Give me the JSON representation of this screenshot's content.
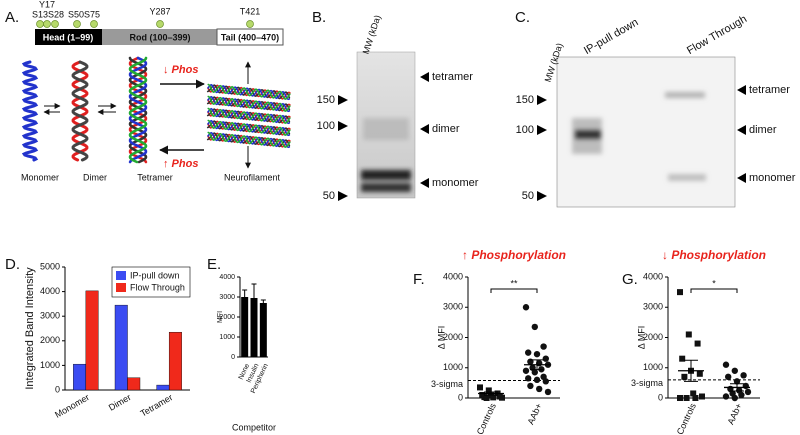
{
  "panel_a": {
    "label": "A.",
    "sites": [
      "Y17",
      "S13",
      "S28",
      "S50",
      "S75",
      "Y287",
      "T421"
    ],
    "domains": [
      "Head (1–99)",
      "Rod (100–399)",
      "Tail (400–470)"
    ],
    "phos_down": "↓ Phos",
    "phos_up": "↑ Phos",
    "states": [
      "Monomer",
      "Dimer",
      "Tetramer",
      "Neurofilament"
    ]
  },
  "panel_b": {
    "label": "B.",
    "axis_label": "MW (kDa)",
    "markers": [
      "150",
      "100",
      "50"
    ],
    "bands": [
      "tetramer",
      "dimer",
      "monomer"
    ]
  },
  "panel_c": {
    "label": "C.",
    "axis_label": "MW (kDa)",
    "lanes": [
      "IP-pull down",
      "Flow Through"
    ],
    "markers": [
      "150",
      "100",
      "50"
    ],
    "bands": [
      "tetramer",
      "dimer",
      "monomer"
    ]
  },
  "chart_data": [
    {
      "type": "bar",
      "panel_label": "D.",
      "y_label": "Integrated Band Intensity",
      "categories": [
        "Monomer",
        "Dimer",
        "Tetramer"
      ],
      "series": [
        {
          "name": "IP-pull down",
          "color": "#3b4cf2",
          "values": [
            1050,
            3450,
            200
          ]
        },
        {
          "name": "Flow Through",
          "color": "#f0291b",
          "values": [
            4030,
            500,
            2350
          ]
        }
      ],
      "ylim": [
        0,
        5000
      ],
      "yticks": [
        0,
        1000,
        2000,
        3000,
        4000,
        5000
      ],
      "legend": "top-right"
    },
    {
      "type": "bar",
      "panel_label": "E.",
      "y_label": "MFI",
      "x_label": "Competitor",
      "categories": [
        "None",
        "Insulin",
        "Peripherin"
      ],
      "values": [
        3000,
        2950,
        2700
      ],
      "errors": [
        350,
        700,
        150
      ],
      "color": "#000000",
      "ylim": [
        0,
        4000
      ],
      "yticks": [
        0,
        1000,
        2000,
        3000,
        4000
      ]
    },
    {
      "type": "dot",
      "panel_label": "F.",
      "title": "↑ Phosphorylation",
      "y_label": "Δ MFI",
      "categories": [
        "Controls",
        "AAb+"
      ],
      "markers": [
        "square",
        "circle"
      ],
      "points": [
        [
          350,
          250,
          150,
          100,
          80,
          50,
          30,
          20,
          10,
          0
        ],
        [
          3000,
          2350,
          1700,
          1500,
          1450,
          1300,
          1200,
          1150,
          1100,
          1000,
          950,
          900,
          850,
          700,
          650,
          600,
          550,
          400,
          300,
          200
        ]
      ],
      "mean": [
        150,
        1100
      ],
      "sem": [
        50,
        160
      ],
      "threshold": {
        "value": 580,
        "label": "3-sigma"
      },
      "significance": "**",
      "ylim": [
        0,
        4000
      ],
      "yticks": [
        0,
        1000,
        2000,
        3000,
        4000
      ]
    },
    {
      "type": "dot",
      "panel_label": "G.",
      "title": "↓ Phosphorylation",
      "y_label": "Δ MFI",
      "categories": [
        "Controls",
        "AAb+"
      ],
      "markers": [
        "square",
        "circle"
      ],
      "points": [
        [
          3500,
          2100,
          1800,
          1300,
          900,
          800,
          700,
          150,
          50,
          0,
          0,
          0
        ],
        [
          1100,
          900,
          750,
          700,
          550,
          400,
          300,
          250,
          200,
          150,
          100,
          50,
          0
        ]
      ],
      "mean": [
        900,
        350
      ],
      "sem": [
        350,
        120
      ],
      "threshold": {
        "value": 600,
        "label": "3-sigma"
      },
      "significance": "*",
      "ylim": [
        0,
        4000
      ],
      "yticks": [
        0,
        1000,
        2000,
        3000,
        4000
      ]
    }
  ]
}
